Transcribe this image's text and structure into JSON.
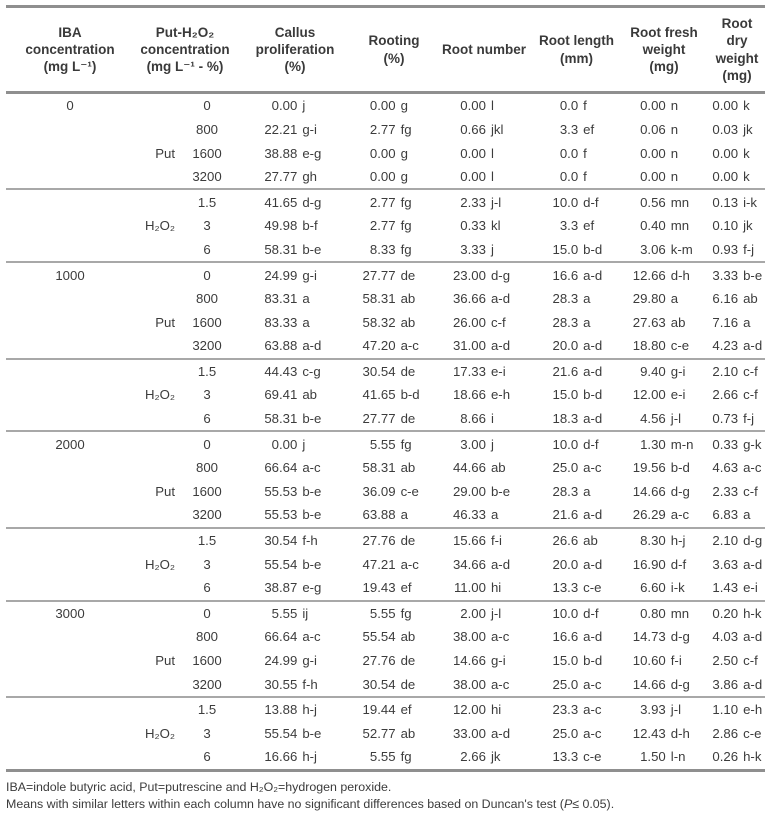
{
  "table": {
    "headers": {
      "iba": "IBA\nconcentration\n(mg L⁻¹)",
      "put_h2o2": "Put-H₂O₂\nconcentration\n(mg L⁻¹ - %)",
      "callus": "Callus\nproliferation\n(%)",
      "rooting": "Rooting\n(%)",
      "root_number": "Root number",
      "root_length": "Root length\n(mm)",
      "root_fresh": "Root fresh\nweight\n(mg)",
      "root_dry": "Root dry\nweight\n(mg)"
    },
    "blocks": [
      {
        "iba": "0",
        "groups": [
          {
            "label": "Put",
            "label_row": 2,
            "rows": [
              {
                "conc": "0",
                "values": [
                  "0.00 j",
                  "0.00 g",
                  "0.00 l",
                  "0.0 f",
                  "0.00 n",
                  "0.00 k"
                ]
              },
              {
                "conc": "800",
                "values": [
                  "22.21 g-i",
                  "2.77 fg",
                  "0.66 jkl",
                  "3.3 ef",
                  "0.06 n",
                  "0.03 jk"
                ]
              },
              {
                "conc": "1600",
                "values": [
                  "38.88 e-g",
                  "0.00 g",
                  "0.00 l",
                  "0.0 f",
                  "0.00 n",
                  "0.00 k"
                ]
              },
              {
                "conc": "3200",
                "values": [
                  "27.77 gh",
                  "0.00 g",
                  "0.00 l",
                  "0.0 f",
                  "0.00 n",
                  "0.00 k"
                ]
              }
            ]
          },
          {
            "label": "H₂O₂",
            "label_row": 1,
            "rows": [
              {
                "conc": "1.5",
                "values": [
                  "41.65 d-g",
                  "2.77 fg",
                  "2.33 j-l",
                  "10.0 d-f",
                  "0.56 mn",
                  "0.13 i-k"
                ]
              },
              {
                "conc": "3",
                "values": [
                  "49.98 b-f",
                  "2.77 fg",
                  "0.33 kl",
                  "3.3 ef",
                  "0.40 mn",
                  "0.10 jk"
                ]
              },
              {
                "conc": "6",
                "values": [
                  "58.31 b-e",
                  "8.33 fg",
                  "3.33 j",
                  "15.0 b-d",
                  "3.06 k-m",
                  "0.93 f-j"
                ]
              }
            ]
          }
        ]
      },
      {
        "iba": "1000",
        "groups": [
          {
            "label": "Put",
            "label_row": 2,
            "rows": [
              {
                "conc": "0",
                "values": [
                  "24.99 g-i",
                  "27.77 de",
                  "23.00 d-g",
                  "16.6 a-d",
                  "12.66 d-h",
                  "3.33 b-e"
                ]
              },
              {
                "conc": "800",
                "values": [
                  "83.31 a",
                  "58.31 ab",
                  "36.66 a-d",
                  "28.3 a",
                  "29.80 a",
                  "6.16 ab"
                ]
              },
              {
                "conc": "1600",
                "values": [
                  "83.33 a",
                  "58.32 ab",
                  "26.00 c-f",
                  "28.3 a",
                  "27.63 ab",
                  "7.16 a"
                ]
              },
              {
                "conc": "3200",
                "values": [
                  "63.88 a-d",
                  "47.20 a-c",
                  "31.00 a-d",
                  "20.0 a-d",
                  "18.80 c-e",
                  "4.23 a-d"
                ]
              }
            ]
          },
          {
            "label": "H₂O₂",
            "label_row": 1,
            "rows": [
              {
                "conc": "1.5",
                "values": [
                  "44.43 c-g",
                  "30.54 de",
                  "17.33 e-i",
                  "21.6 a-d",
                  "9.40 g-i",
                  "2.10 c-f"
                ]
              },
              {
                "conc": "3",
                "values": [
                  "69.41 ab",
                  "41.65 b-d",
                  "18.66 e-h",
                  "15.0 b-d",
                  "12.00 e-i",
                  "2.66 c-f"
                ]
              },
              {
                "conc": "6",
                "values": [
                  "58.31 b-e",
                  "27.77 de",
                  "8.66 i",
                  "18.3 a-d",
                  "4.56 j-l",
                  "0.73 f-j"
                ]
              }
            ]
          }
        ]
      },
      {
        "iba": "2000",
        "groups": [
          {
            "label": "Put",
            "label_row": 2,
            "rows": [
              {
                "conc": "0",
                "values": [
                  "0.00 j",
                  "5.55 fg",
                  "3.00 j",
                  "10.0 d-f",
                  "1.30 m-n",
                  "0.33 g-k"
                ]
              },
              {
                "conc": "800",
                "values": [
                  "66.64 a-c",
                  "58.31 ab",
                  "44.66 ab",
                  "25.0 a-c",
                  "19.56 b-d",
                  "4.63 a-c"
                ]
              },
              {
                "conc": "1600",
                "values": [
                  "55.53 b-e",
                  "36.09 c-e",
                  "29.00 b-e",
                  "28.3 a",
                  "14.66 d-g",
                  "2.33 c-f"
                ]
              },
              {
                "conc": "3200",
                "values": [
                  "55.53 b-e",
                  "63.88 a",
                  "46.33 a",
                  "21.6 a-d",
                  "26.29 a-c",
                  "6.83 a"
                ]
              }
            ]
          },
          {
            "label": "H₂O₂",
            "label_row": 1,
            "rows": [
              {
                "conc": "1.5",
                "values": [
                  "30.54 f-h",
                  "27.76 de",
                  "15.66 f-i",
                  "26.6 ab",
                  "8.30 h-j",
                  "2.10 d-g"
                ]
              },
              {
                "conc": "3",
                "values": [
                  "55.54 b-e",
                  "47.21 a-c",
                  "34.66 a-d",
                  "20.0 a-d",
                  "16.90 d-f",
                  "3.63 a-d"
                ]
              },
              {
                "conc": "6",
                "values": [
                  "38.87 e-g",
                  "19.43 ef",
                  "11.00 hi",
                  "13.3 c-e",
                  "6.60 i-k",
                  "1.43 e-i"
                ]
              }
            ]
          }
        ]
      },
      {
        "iba": "3000",
        "groups": [
          {
            "label": "Put",
            "label_row": 2,
            "rows": [
              {
                "conc": "0",
                "values": [
                  "5.55 ij",
                  "5.55 fg",
                  "2.00 j-l",
                  "10.0 d-f",
                  "0.80 mn",
                  "0.20 h-k"
                ]
              },
              {
                "conc": "800",
                "values": [
                  "66.64 a-c",
                  "55.54 ab",
                  "38.00 a-c",
                  "16.6 a-d",
                  "14.73 d-g",
                  "4.03 a-d"
                ]
              },
              {
                "conc": "1600",
                "values": [
                  "24.99 g-i",
                  "27.76 de",
                  "14.66 g-i",
                  "15.0 b-d",
                  "10.60 f-i",
                  "2.50 c-f"
                ]
              },
              {
                "conc": "3200",
                "values": [
                  "30.55 f-h",
                  "30.54 de",
                  "38.00 a-c",
                  "25.0 a-c",
                  "14.66 d-g",
                  "3.86 a-d"
                ]
              }
            ]
          },
          {
            "label": "H₂O₂",
            "label_row": 1,
            "rows": [
              {
                "conc": "1.5",
                "values": [
                  "13.88 h-j",
                  "19.44 ef",
                  "12.00 hi",
                  "23.3 a-c",
                  "3.93 j-l",
                  "1.10 e-h"
                ]
              },
              {
                "conc": "3",
                "values": [
                  "55.54 b-e",
                  "52.77 ab",
                  "33.00 a-d",
                  "25.0 a-c",
                  "12.43 d-h",
                  "2.86 c-e"
                ]
              },
              {
                "conc": "6",
                "values": [
                  "16.66 h-j",
                  "5.55 fg",
                  "2.66 jk",
                  "13.3 c-e",
                  "1.50 l-n",
                  "0.26 h-k"
                ]
              }
            ]
          }
        ]
      }
    ],
    "footnotes": {
      "line1": "IBA=indole butyric acid, Put=putrescine and H₂O₂=hydrogen peroxide.",
      "line2_pre": "Means with similar letters within each column have no significant differences based on Duncan's test (",
      "line2_italic": "P",
      "line2_post": "≤ 0.05)."
    }
  }
}
